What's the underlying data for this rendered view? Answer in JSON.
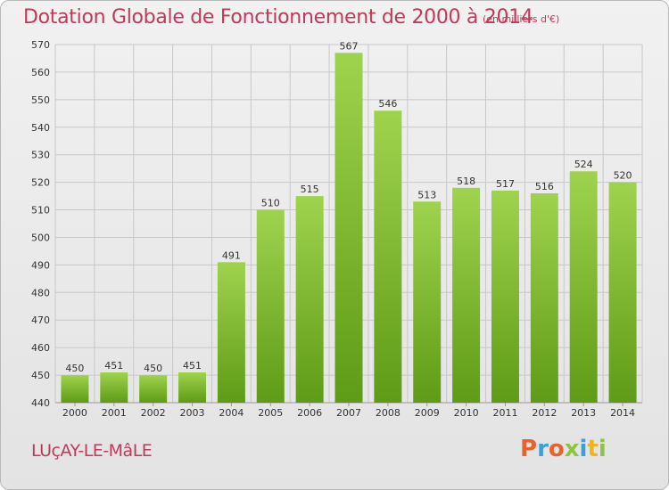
{
  "header": {
    "title": "Dotation Globale de Fonctionnement de 2000 à 2014",
    "unit": "(en milliers d'€)"
  },
  "footer": {
    "commune": "LUçAY-LE-MâLE",
    "logo_text": "Proxiti",
    "logo_colors": [
      "#e8622c",
      "#3aa0d8",
      "#e8622c",
      "#8cc63f",
      "#3aa0d8",
      "#f2b31b",
      "#8cc63f"
    ]
  },
  "colors": {
    "bar_top": "#9fd34e",
    "bar_bottom": "#5e9b16",
    "grid": "#c8c8c8",
    "title": "#c0395a"
  },
  "chart_data": {
    "type": "bar",
    "title": "Dotation Globale de Fonctionnement de 2000 à 2014",
    "subtitle": "(en milliers d'€)",
    "categories": [
      "2000",
      "2001",
      "2002",
      "2003",
      "2004",
      "2005",
      "2006",
      "2007",
      "2008",
      "2009",
      "2010",
      "2011",
      "2012",
      "2013",
      "2014"
    ],
    "values": [
      450,
      451,
      450,
      451,
      491,
      510,
      515,
      567,
      546,
      513,
      518,
      517,
      516,
      524,
      520
    ],
    "ylim": [
      440,
      570
    ],
    "yticks": [
      440,
      450,
      460,
      470,
      480,
      490,
      500,
      510,
      520,
      530,
      540,
      550,
      560,
      570
    ],
    "grid": true,
    "xlabel": "",
    "ylabel": ""
  }
}
